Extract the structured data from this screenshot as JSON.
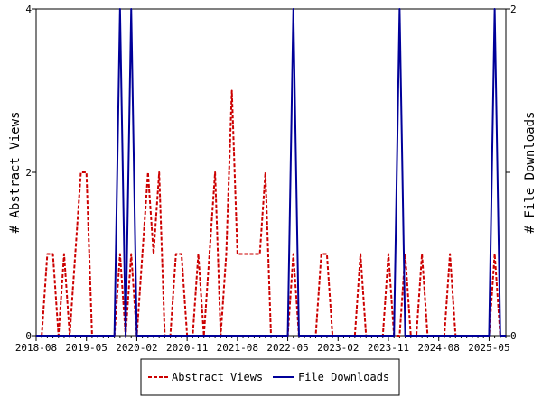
{
  "chart_data": {
    "type": "line",
    "title": "",
    "ylabel_left": "# Abstract Views",
    "ylabel_right": "# File Downloads",
    "x_tick_labels": [
      "2018-08",
      "2019-05",
      "2020-02",
      "2020-11",
      "2021-08",
      "2022-05",
      "2023-02",
      "2023-11",
      "2024-08",
      "2025-05"
    ],
    "x_tick_months": [
      0,
      9,
      18,
      27,
      36,
      45,
      54,
      63,
      72,
      81
    ],
    "y_left_ticks": [
      "0",
      "2",
      "4"
    ],
    "y_right_ticks": [
      "0",
      "1",
      "2"
    ],
    "y_left_ticks_shown": [
      "0",
      "2",
      "4"
    ],
    "y_right_ticks_shown": [
      "0",
      "2"
    ],
    "ylim_left": [
      0,
      4
    ],
    "ylim_right": [
      0,
      2
    ],
    "x_month_range": [
      0,
      84
    ],
    "legend_placement": "bottom-center",
    "series": [
      {
        "name": "Abstract Views",
        "axis": "left",
        "color": "#cc0000",
        "style": "dashed",
        "values": [
          0,
          0,
          1,
          1,
          0,
          1,
          0,
          1,
          2,
          2,
          0,
          0,
          0,
          0,
          0,
          1,
          0,
          1,
          0,
          1,
          2,
          1,
          2,
          0,
          0,
          1,
          1,
          0,
          0,
          1,
          0,
          1,
          2,
          0,
          1,
          3,
          1,
          1,
          1,
          1,
          1,
          2,
          0,
          0,
          0,
          0,
          1,
          0,
          0,
          0,
          0,
          1,
          1,
          0,
          0,
          0,
          0,
          0,
          1,
          0,
          0,
          0,
          0,
          1,
          0,
          0,
          1,
          0,
          0,
          1,
          0,
          0,
          0,
          0,
          1,
          0,
          0,
          0,
          0,
          0,
          0,
          0,
          1,
          0,
          0
        ]
      },
      {
        "name": "File Downloads",
        "axis": "right",
        "color": "#000099",
        "style": "solid",
        "values": [
          0,
          0,
          0,
          0,
          0,
          0,
          0,
          0,
          0,
          0,
          0,
          0,
          0,
          0,
          0,
          2,
          0,
          2,
          0,
          0,
          0,
          0,
          0,
          0,
          0,
          0,
          0,
          0,
          0,
          0,
          0,
          0,
          0,
          0,
          0,
          0,
          0,
          0,
          0,
          0,
          0,
          0,
          0,
          0,
          0,
          0,
          2,
          0,
          0,
          0,
          0,
          0,
          0,
          0,
          0,
          0,
          0,
          0,
          0,
          0,
          0,
          0,
          0,
          0,
          0,
          2,
          0,
          0,
          0,
          0,
          0,
          0,
          0,
          0,
          0,
          0,
          0,
          0,
          0,
          0,
          0,
          0,
          2,
          0,
          0
        ]
      }
    ]
  }
}
